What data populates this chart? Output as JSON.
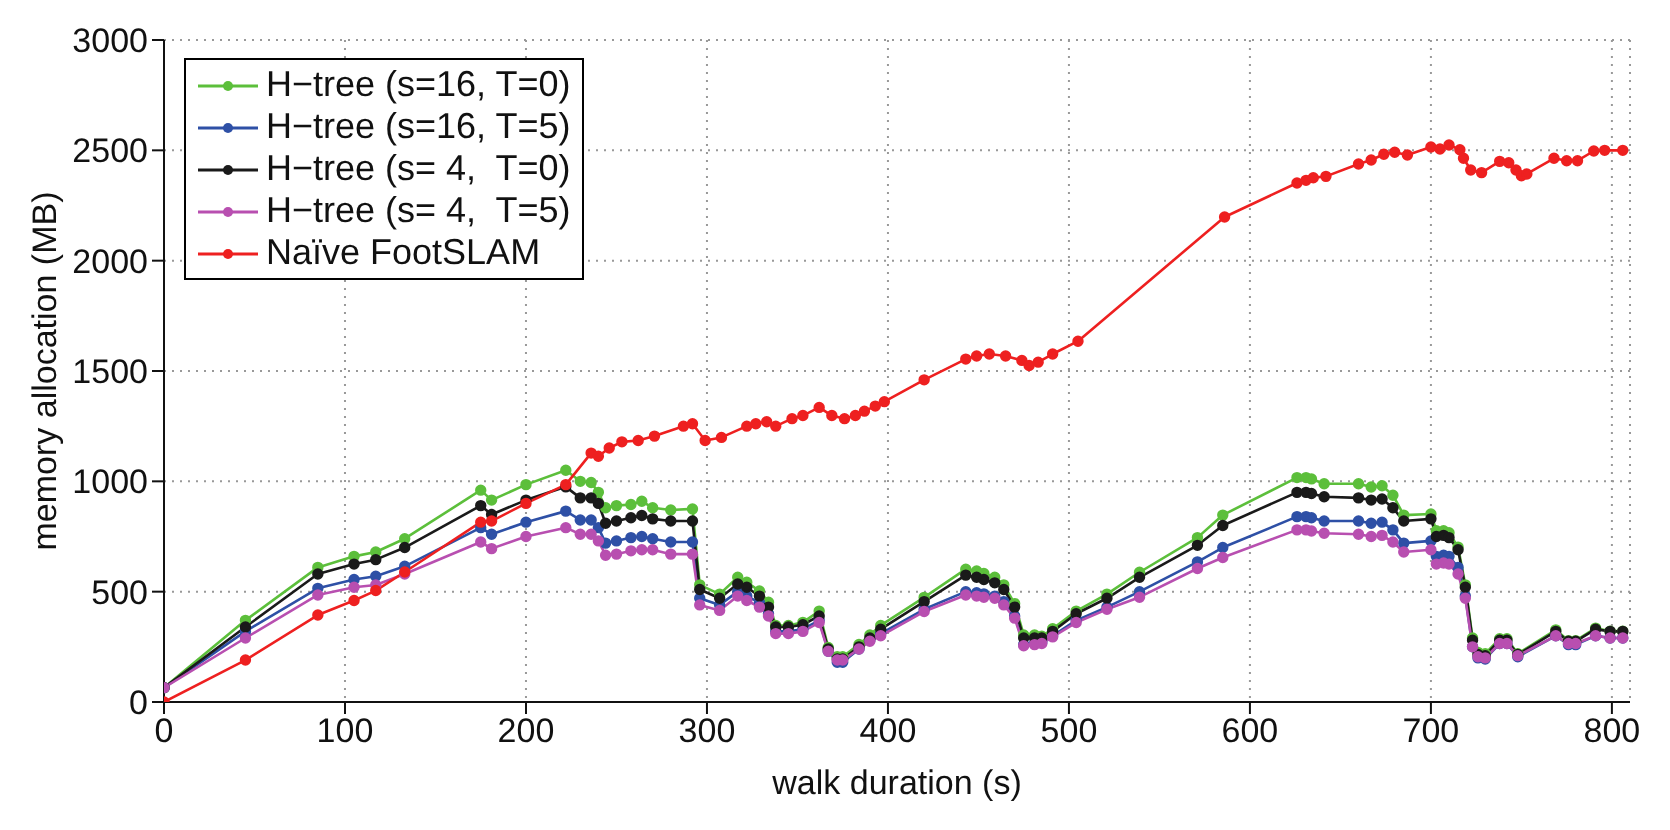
{
  "chart_data": {
    "type": "line",
    "xlabel": "walk duration (s)",
    "ylabel": "memory allocation (MB)",
    "xlim": [
      0,
      810
    ],
    "ylim": [
      0,
      3000
    ],
    "xticks": [
      0,
      100,
      200,
      300,
      400,
      500,
      600,
      700,
      800
    ],
    "yticks": [
      0,
      500,
      1000,
      1500,
      2000,
      2500,
      3000
    ],
    "grid": true,
    "legend": "top left",
    "marker": "circle",
    "line_style": "solid",
    "x": [
      0,
      45,
      85,
      105,
      117,
      133,
      175,
      181,
      200,
      222,
      230,
      236,
      240,
      244,
      250,
      258,
      264,
      270,
      280,
      292,
      296,
      307,
      317,
      322,
      329,
      334,
      338,
      345,
      353,
      362,
      367,
      372,
      375,
      384,
      390,
      396,
      420,
      443,
      449,
      453,
      459,
      464,
      470,
      475,
      481,
      485,
      491,
      504,
      521,
      539,
      571,
      585,
      626,
      631,
      634,
      641,
      660,
      667,
      673,
      679,
      685,
      700,
      703,
      707,
      710,
      715,
      719,
      723,
      726,
      730,
      738,
      742,
      748,
      769,
      776,
      780,
      791,
      799,
      806
    ],
    "series": [
      {
        "name": "H−tree (s=16, T=0)",
        "color": "#5cbf3b",
        "values": [
          65,
          370,
          610,
          660,
          680,
          740,
          960,
          915,
          985,
          1050,
          1000,
          995,
          950,
          880,
          890,
          895,
          910,
          880,
          870,
          875,
          531,
          489,
          565,
          543,
          503,
          452,
          347,
          347,
          361,
          412,
          247,
          205,
          205,
          261,
          304,
          347,
          474,
          602,
          594,
          582,
          565,
          531,
          446,
          304,
          304,
          298,
          332,
          412,
          489,
          588,
          745,
          847,
          1017,
          1017,
          1011,
          989,
          989,
          974,
          980,
          937,
          847,
          852,
          776,
          776,
          767,
          702,
          531,
          290,
          225,
          219,
          287,
          287,
          219,
          327,
          278,
          278,
          335,
          321,
          321
        ]
      },
      {
        "name": "H−tree (s=16, T=5)",
        "color": "#2e50a6",
        "values": [
          65,
          320,
          515,
          555,
          570,
          615,
          790,
          760,
          815,
          865,
          825,
          825,
          790,
          720,
          730,
          745,
          750,
          740,
          725,
          725,
          470,
          440,
          500,
          480,
          450,
          400,
          320,
          320,
          330,
          370,
          230,
          180,
          180,
          240,
          280,
          310,
          420,
          500,
          495,
          490,
          480,
          455,
          390,
          260,
          265,
          270,
          300,
          370,
          430,
          500,
          635,
          700,
          840,
          840,
          835,
          820,
          820,
          810,
          815,
          780,
          720,
          730,
          660,
          665,
          660,
          610,
          480,
          250,
          200,
          195,
          265,
          265,
          205,
          300,
          260,
          260,
          300,
          290,
          290
        ]
      },
      {
        "name": "H−tree (s= 4,  T=0)",
        "color": "#1a1a1a",
        "values": [
          65,
          340,
          580,
          625,
          645,
          700,
          890,
          850,
          915,
          975,
          925,
          925,
          900,
          810,
          820,
          835,
          845,
          830,
          820,
          820,
          510,
          470,
          535,
          520,
          480,
          430,
          340,
          340,
          350,
          390,
          240,
          195,
          195,
          250,
          290,
          330,
          455,
          575,
          565,
          555,
          540,
          510,
          430,
          290,
          290,
          290,
          320,
          400,
          470,
          565,
          710,
          800,
          950,
          950,
          945,
          930,
          925,
          915,
          920,
          880,
          820,
          830,
          750,
          755,
          745,
          690,
          520,
          280,
          215,
          210,
          280,
          280,
          215,
          320,
          275,
          275,
          330,
          320,
          320
        ]
      },
      {
        "name": "H−tree (s= 4,  T=5)",
        "color": "#b84fb0",
        "values": [
          65,
          290,
          485,
          520,
          530,
          580,
          725,
          695,
          750,
          790,
          760,
          760,
          730,
          665,
          670,
          685,
          690,
          690,
          670,
          670,
          440,
          415,
          480,
          460,
          430,
          390,
          310,
          310,
          320,
          360,
          230,
          190,
          190,
          240,
          275,
          300,
          410,
          485,
          480,
          475,
          470,
          440,
          380,
          255,
          260,
          265,
          295,
          360,
          420,
          475,
          605,
          655,
          780,
          780,
          775,
          765,
          760,
          750,
          755,
          725,
          680,
          690,
          625,
          630,
          625,
          580,
          470,
          250,
          205,
          200,
          265,
          265,
          210,
          300,
          265,
          265,
          300,
          290,
          290
        ]
      },
      {
        "name": "Naïve FootSLAM",
        "color": "#ee2020",
        "x": [
          0,
          45,
          85,
          105,
          117,
          133,
          175,
          181,
          200,
          222,
          236,
          240,
          246,
          253,
          262,
          271,
          287,
          292,
          299,
          308,
          322,
          327,
          333,
          338,
          347,
          353,
          362,
          369,
          376,
          382,
          387,
          393,
          398,
          420,
          443,
          449,
          456,
          465,
          474,
          478,
          483,
          491,
          505,
          586,
          626,
          631,
          635,
          642,
          660,
          667,
          674,
          680,
          687,
          700,
          705,
          710,
          716,
          718,
          722,
          728,
          738,
          743,
          747,
          750,
          753,
          768,
          775,
          781,
          790,
          796,
          806
        ],
        "values": [
          0,
          190,
          394,
          460,
          505,
          589,
          815,
          820,
          900,
          985,
          1128,
          1114,
          1151,
          1179,
          1185,
          1205,
          1250,
          1261,
          1185,
          1199,
          1250,
          1261,
          1270,
          1250,
          1284,
          1298,
          1335,
          1298,
          1284,
          1298,
          1318,
          1341,
          1361,
          1460,
          1554,
          1568,
          1577,
          1568,
          1548,
          1525,
          1540,
          1577,
          1635,
          2198,
          2352,
          2364,
          2376,
          2382,
          2438,
          2456,
          2482,
          2491,
          2479,
          2515,
          2506,
          2524,
          2503,
          2464,
          2411,
          2399,
          2450,
          2444,
          2411,
          2385,
          2393,
          2464,
          2453,
          2453,
          2497,
          2500,
          2500
        ]
      }
    ]
  }
}
